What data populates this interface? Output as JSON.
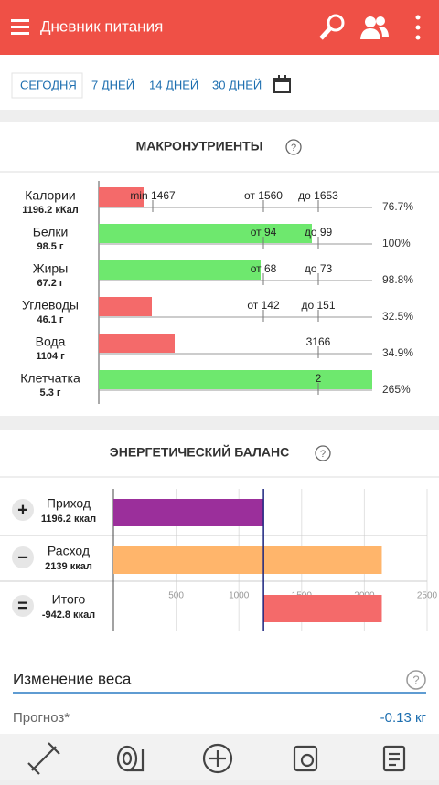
{
  "header": {
    "title": "Дневник питания"
  },
  "tabs": [
    "СЕГОДНЯ",
    "7 ДНЕЙ",
    "14 ДНЕЙ",
    "30 ДНЕЙ"
  ],
  "macros": {
    "title": "МАКРОНУТРИЕНТЫ",
    "rows": [
      {
        "name": "Калории",
        "amount": "1196.2 кКал",
        "percent": "76.7%",
        "color": "#f46a6a",
        "markers": [
          "min 1467",
          "от 1560",
          "до 1653"
        ]
      },
      {
        "name": "Белки",
        "amount": "98.5 г",
        "percent": "100%",
        "color": "#6ee86e",
        "markers": [
          "от 94",
          "до 99"
        ]
      },
      {
        "name": "Жиры",
        "amount": "67.2 г",
        "percent": "98.8%",
        "color": "#6ee86e",
        "markers": [
          "от 68",
          "до 73"
        ]
      },
      {
        "name": "Углеводы",
        "amount": "46.1 г",
        "percent": "32.5%",
        "color": "#f46a6a",
        "markers": [
          "от 142",
          "до 151"
        ]
      },
      {
        "name": "Вода",
        "amount": "1104 г",
        "percent": "34.9%",
        "color": "#f46a6a",
        "markers": [
          "3166"
        ]
      },
      {
        "name": "Клетчатка",
        "amount": "5.3 г",
        "percent": "265%",
        "color": "#6ee86e",
        "markers": [
          "2"
        ]
      }
    ]
  },
  "energy": {
    "title": "ЭНЕРГЕТИЧЕСКИЙ БАЛАНС",
    "xlim": [
      0,
      2500
    ],
    "xticks": [
      500,
      1000,
      1500,
      2000,
      2500
    ],
    "items": [
      {
        "name": "Приход",
        "value": 1196.2,
        "label": "1196.2 ккал",
        "color": "#9b2f9b"
      },
      {
        "name": "Расход",
        "value": 2139,
        "label": "2139 ккал",
        "color": "#ffb56b"
      },
      {
        "name": "Итого",
        "value": -942.8,
        "label": "-942.8 ккал",
        "color": "#f46a6a"
      }
    ]
  },
  "weight": {
    "title": "Изменение веса",
    "forecast_label": "Прогноз*",
    "forecast_value": "-0.13 кг"
  }
}
